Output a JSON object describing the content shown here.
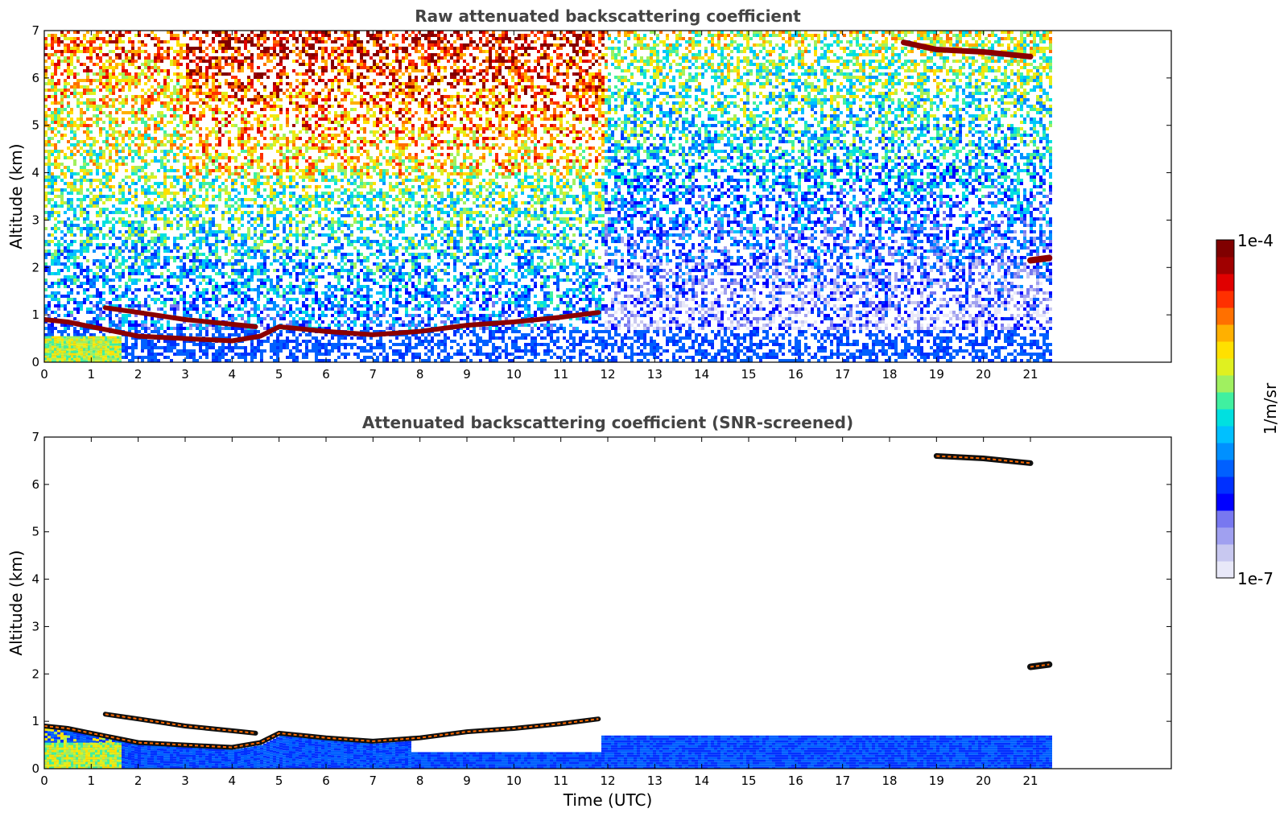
{
  "chart_data": [
    {
      "type": "heatmap",
      "title": "Raw attenuated backscattering coefficient",
      "xlabel": "",
      "ylabel": "Altitude (km)",
      "xlim": [
        0,
        24
      ],
      "ylim": [
        0,
        7
      ],
      "xticks": [
        "0",
        "1",
        "2",
        "3",
        "4",
        "5",
        "6",
        "7",
        "8",
        "9",
        "10",
        "11",
        "12",
        "13",
        "14",
        "15",
        "16",
        "17",
        "18",
        "19",
        "20",
        "21"
      ],
      "yticks": [
        "0",
        "1",
        "2",
        "3",
        "4",
        "5",
        "6",
        "7"
      ],
      "data_end_hour": 21.4,
      "features": [
        {
          "kind": "boundary-layer-top",
          "points": [
            [
              0,
              0.9
            ],
            [
              0.5,
              0.85
            ],
            [
              1,
              0.75
            ],
            [
              1.5,
              0.65
            ],
            [
              2,
              0.55
            ],
            [
              3,
              0.5
            ],
            [
              4,
              0.45
            ],
            [
              4.6,
              0.55
            ],
            [
              5,
              0.75
            ],
            [
              6,
              0.65
            ],
            [
              7,
              0.58
            ],
            [
              8,
              0.65
            ],
            [
              9,
              0.78
            ],
            [
              10,
              0.85
            ],
            [
              11,
              0.95
            ],
            [
              11.8,
              1.05
            ]
          ]
        },
        {
          "kind": "elevated-layer",
          "points": [
            [
              1.3,
              1.15
            ],
            [
              2,
              1.05
            ],
            [
              3,
              0.9
            ],
            [
              4,
              0.8
            ],
            [
              4.5,
              0.75
            ]
          ]
        },
        {
          "kind": "cirrus",
          "points": [
            [
              18.3,
              6.75
            ],
            [
              19,
              6.6
            ],
            [
              20,
              6.55
            ],
            [
              21,
              6.45
            ]
          ]
        },
        {
          "kind": "cloud",
          "points": [
            [
              21,
              2.15
            ],
            [
              21.4,
              2.2
            ]
          ]
        }
      ]
    },
    {
      "type": "heatmap",
      "title": "Attenuated backscattering coefficient (SNR-screened)",
      "xlabel": "Time (UTC)",
      "ylabel": "Altitude (km)",
      "xlim": [
        0,
        24
      ],
      "ylim": [
        0,
        7
      ],
      "xticks": [
        "0",
        "1",
        "2",
        "3",
        "4",
        "5",
        "6",
        "7",
        "8",
        "9",
        "10",
        "11",
        "12",
        "13",
        "14",
        "15",
        "16",
        "17",
        "18",
        "19",
        "20",
        "21"
      ],
      "yticks": [
        "0",
        "1",
        "2",
        "3",
        "4",
        "5",
        "6",
        "7"
      ],
      "data_end_hour": 21.4,
      "features": [
        {
          "kind": "boundary-layer-top",
          "points": [
            [
              0,
              0.9
            ],
            [
              0.5,
              0.85
            ],
            [
              1,
              0.75
            ],
            [
              1.5,
              0.65
            ],
            [
              2,
              0.55
            ],
            [
              3,
              0.5
            ],
            [
              4,
              0.45
            ],
            [
              4.6,
              0.55
            ],
            [
              5,
              0.75
            ],
            [
              6,
              0.65
            ],
            [
              7,
              0.58
            ],
            [
              8,
              0.65
            ],
            [
              9,
              0.78
            ],
            [
              10,
              0.85
            ],
            [
              11,
              0.95
            ],
            [
              11.8,
              1.05
            ]
          ]
        },
        {
          "kind": "elevated-layer",
          "points": [
            [
              1.3,
              1.15
            ],
            [
              2,
              1.05
            ],
            [
              3,
              0.9
            ],
            [
              4,
              0.8
            ],
            [
              4.5,
              0.75
            ]
          ]
        },
        {
          "kind": "cirrus",
          "points": [
            [
              19,
              6.6
            ],
            [
              20,
              6.55
            ],
            [
              21,
              6.45
            ]
          ]
        },
        {
          "kind": "cloud",
          "points": [
            [
              21,
              2.15
            ],
            [
              21.4,
              2.2
            ]
          ]
        }
      ]
    }
  ],
  "colorbar": {
    "max_label": "1e-4",
    "min_label": "1e-7",
    "unit_label": "1/m/sr",
    "colors": [
      "#e8e8f8",
      "#c8c8f0",
      "#a0a0f0",
      "#7878f0",
      "#0000ff",
      "#0030ff",
      "#0060ff",
      "#0090ff",
      "#00c0ff",
      "#00e0e0",
      "#40f0a0",
      "#a0f060",
      "#e0f020",
      "#ffe000",
      "#ffb000",
      "#ff7000",
      "#ff3000",
      "#e00000",
      "#a00000",
      "#800000"
    ]
  }
}
